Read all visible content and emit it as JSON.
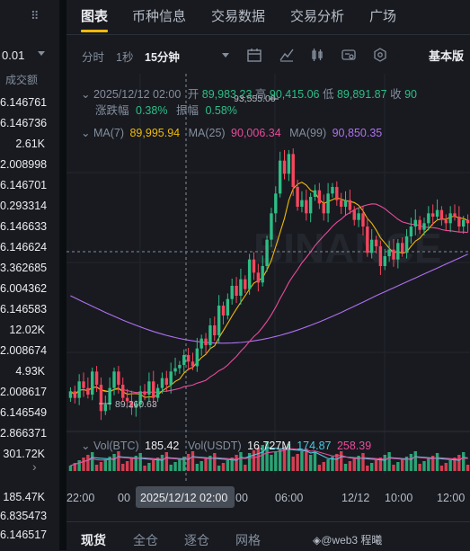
{
  "left_panel": {
    "precision": "0.01",
    "volume_header": "成交额",
    "trades": [
      {
        "value": "6.146761",
        "color": "#eaecef"
      },
      {
        "value": "6.146736",
        "color": "#eaecef"
      },
      {
        "value": "2.61K",
        "color": "#eaecef"
      },
      {
        "value": "2.008998",
        "color": "#eaecef"
      },
      {
        "value": "6.146701",
        "color": "#eaecef"
      },
      {
        "value": "0.293314",
        "color": "#eaecef"
      },
      {
        "value": "6.146633",
        "color": "#eaecef"
      },
      {
        "value": "6.146624",
        "color": "#eaecef"
      },
      {
        "value": "3.362685",
        "color": "#eaecef"
      },
      {
        "value": "6.004362",
        "color": "#eaecef"
      },
      {
        "value": "6.146583",
        "color": "#eaecef"
      },
      {
        "value": "12.02K",
        "color": "#eaecef"
      },
      {
        "value": "2.008674",
        "color": "#eaecef"
      },
      {
        "value": "4.93K",
        "color": "#eaecef"
      },
      {
        "value": "2.008617",
        "color": "#eaecef"
      },
      {
        "value": "6.146549",
        "color": "#eaecef"
      },
      {
        "value": "2.866371",
        "color": "#eaecef"
      },
      {
        "value": "301.72K",
        "color": "#eaecef"
      }
    ],
    "bottom_trades": [
      {
        "value": "185.47K"
      },
      {
        "value": "6.835473"
      },
      {
        "value": "6.146517"
      }
    ]
  },
  "tabs": [
    "图表",
    "币种信息",
    "交易数据",
    "交易分析",
    "广场"
  ],
  "toolbar": {
    "timeframes": [
      "分时",
      "1秒",
      "15分钟"
    ],
    "basic_label": "基本版"
  },
  "ohlc": {
    "date": "2025/12/12 02:00",
    "open_label": "开",
    "open": "89,983.23",
    "high_label": "高",
    "high": "90,415.06",
    "low_label": "低",
    "low": "89,891.87",
    "close_label": "收",
    "close": "90",
    "change_label": "涨跌幅",
    "change": "0.38%",
    "amp_label": "振幅",
    "amp": "0.58%"
  },
  "ma": {
    "ma7_label": "MA(7)",
    "ma7": "89,995.94",
    "ma25_label": "MA(25)",
    "ma25": "90,006.34",
    "ma99_label": "MA(99)",
    "ma99": "90,850.35"
  },
  "markers": {
    "high": "93,555.00",
    "low": "89,260.63"
  },
  "volume": {
    "btc_label": "Vol(BTC)",
    "btc": "185.42",
    "usdt_label": "Vol(USDT)",
    "usdt": "16.727M",
    "v1": "174.87",
    "v2": "258.39"
  },
  "time_axis": [
    "22:00",
    "06:00",
    "12/12",
    "10:00",
    "12:00"
  ],
  "crosshair_label": "2025/12/12 02:00",
  "watermark_text": "BINANCE",
  "bottom_tabs": [
    "现货",
    "全仓",
    "逐仓",
    "网格"
  ],
  "footer": "◈@web3 程曦",
  "colors": {
    "up": "#2ebd85",
    "down": "#f6465d",
    "ma7": "#f0b90b",
    "ma25": "#e84b9a",
    "ma99": "#b070f0",
    "accent": "#f0b90b"
  }
}
